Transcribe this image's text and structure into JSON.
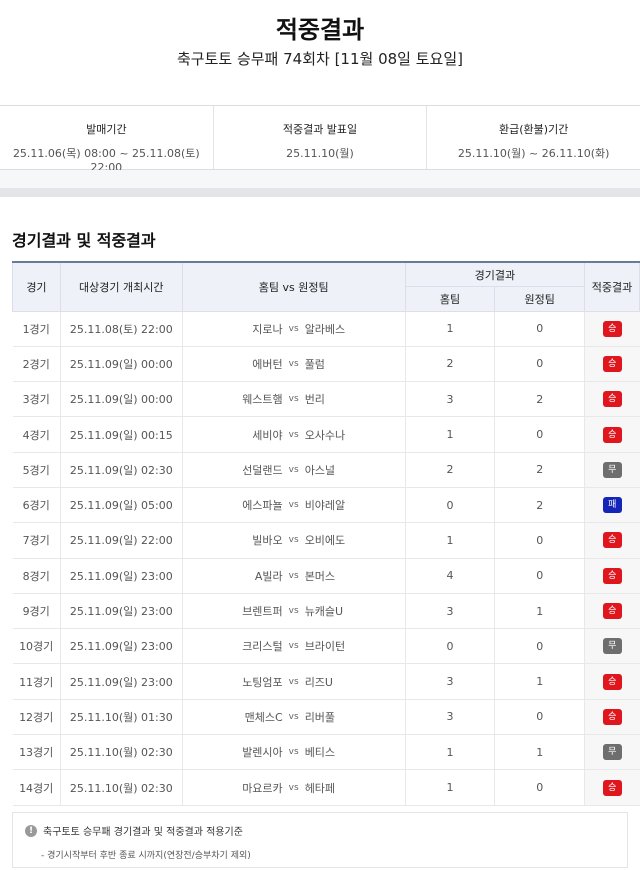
{
  "page": {
    "title": "적중결과",
    "subtitle": "축구토토 승무패 74회차 [11월 08일 토요일]"
  },
  "info": [
    {
      "label": "발매기간",
      "value": "25.11.06(목) 08:00 ~ 25.11.08(토) 22:00"
    },
    {
      "label": "적중결과 발표일",
      "value": "25.11.10(월)"
    },
    {
      "label": "환급(환불)기간",
      "value": "25.11.10(월) ~ 26.11.10(화)"
    }
  ],
  "section_title": "경기결과 및 적중결과",
  "table": {
    "headers": {
      "game": "경기",
      "time": "대상경기 개최시간",
      "teams": "홈팀 vs 원정팀",
      "result_group": "경기결과",
      "home": "홈팀",
      "away": "원정팀",
      "hit": "적중결과",
      "vs": "vs"
    },
    "rows": [
      {
        "game": "1경기",
        "time": "25.11.08(토) 22:00",
        "home_team": "지로나",
        "away_team": "알라베스",
        "home_score": "1",
        "away_score": "0",
        "result": "승"
      },
      {
        "game": "2경기",
        "time": "25.11.09(일) 00:00",
        "home_team": "에버턴",
        "away_team": "풀럼",
        "home_score": "2",
        "away_score": "0",
        "result": "승"
      },
      {
        "game": "3경기",
        "time": "25.11.09(일) 00:00",
        "home_team": "웨스트햄",
        "away_team": "번리",
        "home_score": "3",
        "away_score": "2",
        "result": "승"
      },
      {
        "game": "4경기",
        "time": "25.11.09(일) 00:15",
        "home_team": "세비야",
        "away_team": "오사수나",
        "home_score": "1",
        "away_score": "0",
        "result": "승"
      },
      {
        "game": "5경기",
        "time": "25.11.09(일) 02:30",
        "home_team": "선덜랜드",
        "away_team": "아스널",
        "home_score": "2",
        "away_score": "2",
        "result": "무"
      },
      {
        "game": "6경기",
        "time": "25.11.09(일) 05:00",
        "home_team": "에스파뇰",
        "away_team": "비야레알",
        "home_score": "0",
        "away_score": "2",
        "result": "패"
      },
      {
        "game": "7경기",
        "time": "25.11.09(일) 22:00",
        "home_team": "빌바오",
        "away_team": "오비에도",
        "home_score": "1",
        "away_score": "0",
        "result": "승"
      },
      {
        "game": "8경기",
        "time": "25.11.09(일) 23:00",
        "home_team": "A빌라",
        "away_team": "본머스",
        "home_score": "4",
        "away_score": "0",
        "result": "승"
      },
      {
        "game": "9경기",
        "time": "25.11.09(일) 23:00",
        "home_team": "브렌트퍼",
        "away_team": "뉴캐슬U",
        "home_score": "3",
        "away_score": "1",
        "result": "승"
      },
      {
        "game": "10경기",
        "time": "25.11.09(일) 23:00",
        "home_team": "크리스털",
        "away_team": "브라이턴",
        "home_score": "0",
        "away_score": "0",
        "result": "무"
      },
      {
        "game": "11경기",
        "time": "25.11.09(일) 23:00",
        "home_team": "노팅엄포",
        "away_team": "리즈U",
        "home_score": "3",
        "away_score": "1",
        "result": "승"
      },
      {
        "game": "12경기",
        "time": "25.11.10(월) 01:30",
        "home_team": "맨체스C",
        "away_team": "리버풀",
        "home_score": "3",
        "away_score": "0",
        "result": "승"
      },
      {
        "game": "13경기",
        "time": "25.11.10(월) 02:30",
        "home_team": "발렌시아",
        "away_team": "베티스",
        "home_score": "1",
        "away_score": "1",
        "result": "무"
      },
      {
        "game": "14경기",
        "time": "25.11.10(월) 02:30",
        "home_team": "마요르카",
        "away_team": "헤타페",
        "home_score": "1",
        "away_score": "0",
        "result": "승"
      }
    ]
  },
  "result_colors": {
    "승": "#e0161f",
    "무": "#6e6e6e",
    "패": "#1426b8"
  },
  "note": {
    "icon": "exclamation-circle-icon",
    "title": "축구토토 승무패 경기결과 및 적중결과 적용기준",
    "detail": "- 경기시작부터 후반 종료 시까지(연장전/승부차기 제외)"
  }
}
